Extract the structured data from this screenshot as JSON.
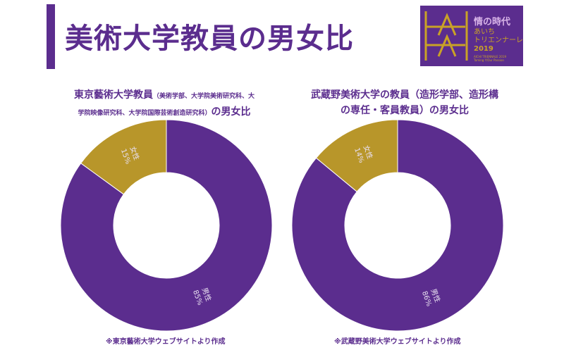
{
  "slide": {
    "title": "美術大学教員の男女比"
  },
  "logo": {
    "main": "情の時代",
    "sub_line1": "あいち",
    "sub_line2": "トリエンナーレ",
    "year": "2019",
    "tiny_line1": "AICHI TRIENNALE 2019",
    "tiny_line2": "Taming Y/Our Passion"
  },
  "colors": {
    "male": "#5b2d8e",
    "female": "#b8962a",
    "accent": "#5b2d8e"
  },
  "chart_data": [
    {
      "type": "pie",
      "title_main": "東京藝術大学教員",
      "title_note_line1": "（美術学部、大学院美術研究科、大",
      "title_note_line2": "学院映像研究科、大学院国際芸術創造研究科）",
      "title_suffix": "の男女比",
      "slices": [
        {
          "label": "女性",
          "value": 15,
          "value_label": "15%",
          "color": "#b8962a"
        },
        {
          "label": "男性",
          "value": 85,
          "value_label": "85%",
          "color": "#5b2d8e"
        }
      ],
      "hole": 0.5,
      "footnote": "※東京藝術大学ウェブサイトより作成"
    },
    {
      "type": "pie",
      "title_line1": "武蔵野美術大学の教員（造形学部、造形構",
      "title_line2": "の専任・客員教員）の男女比",
      "slices": [
        {
          "label": "女性",
          "value": 14,
          "value_label": "14%",
          "color": "#b8962a"
        },
        {
          "label": "男性",
          "value": 86,
          "value_label": "86%",
          "color": "#5b2d8e"
        }
      ],
      "hole": 0.5,
      "footnote": "※武蔵野美術大学ウェブサイトより作成"
    }
  ]
}
